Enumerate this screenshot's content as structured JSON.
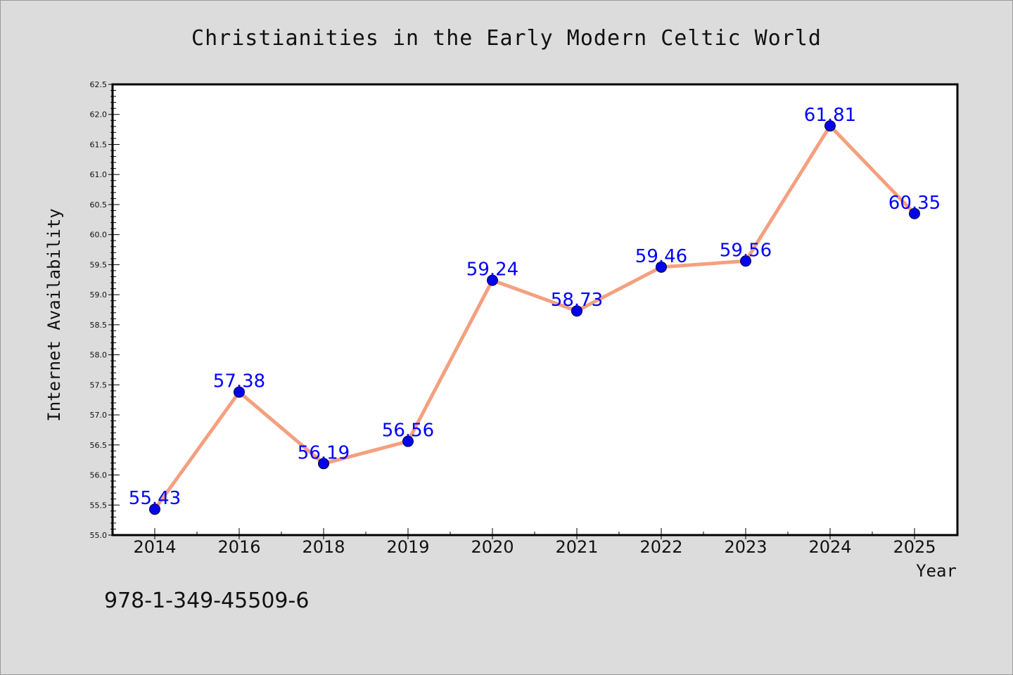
{
  "chart_data": {
    "type": "line",
    "title": "Christianities in the Early Modern Celtic World",
    "xlabel": "Year",
    "ylabel": "Internet Availability",
    "categories": [
      "2014",
      "2016",
      "2018",
      "2019",
      "2020",
      "2021",
      "2022",
      "2023",
      "2024",
      "2025"
    ],
    "values": [
      55.43,
      57.38,
      56.19,
      56.56,
      59.24,
      58.73,
      59.46,
      59.56,
      61.81,
      60.35
    ],
    "data_labels": [
      "55.43",
      "57.38",
      "56.19",
      "56.56",
      "59.24",
      "58.73",
      "59.46",
      "59.56",
      "61.81",
      "60.35"
    ],
    "ylim": [
      55.0,
      62.5
    ],
    "yticks": [
      "55.0",
      "55.5",
      "56.0",
      "56.5",
      "57.0",
      "57.5",
      "58.0",
      "58.5",
      "59.0",
      "59.5",
      "60.0",
      "60.5",
      "61.0",
      "61.5",
      "62.0",
      "62.5"
    ],
    "grid": false,
    "line_color": "#f4a07f",
    "marker_color": "#0000ee",
    "label_color": "#0000ff",
    "background_color": "#dcdcdc",
    "plot_background_color": "#ffffff"
  },
  "footer": {
    "isbn": "978-1-349-45509-6"
  }
}
